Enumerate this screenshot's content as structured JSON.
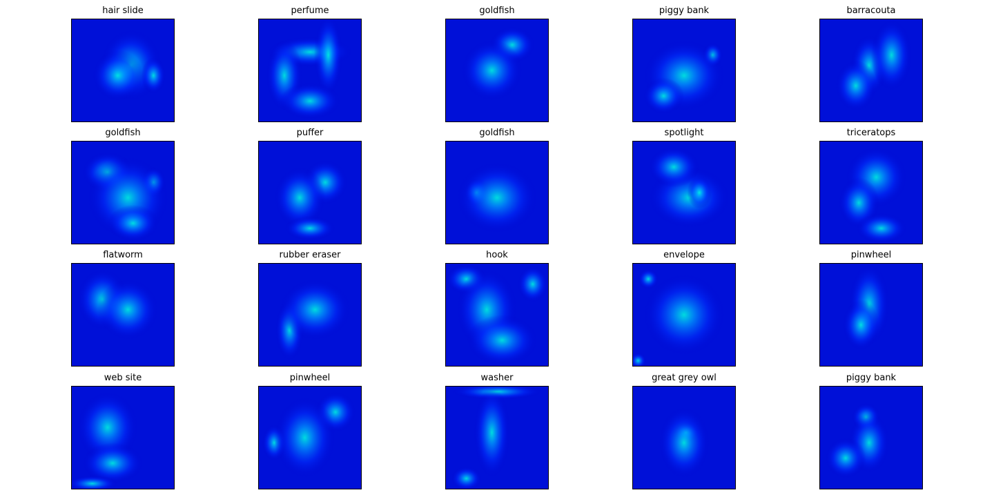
{
  "chart_data": {
    "type": "heatmap",
    "layout": "grid of saliency heatmaps",
    "rows": 4,
    "cols": 5,
    "colormap": "jet",
    "axes": "off",
    "panels": [
      {
        "title": "hair slide"
      },
      {
        "title": "perfume"
      },
      {
        "title": "goldfish"
      },
      {
        "title": "piggy bank"
      },
      {
        "title": "barracouta"
      },
      {
        "title": "goldfish"
      },
      {
        "title": "puffer"
      },
      {
        "title": "goldfish"
      },
      {
        "title": "spotlight"
      },
      {
        "title": "triceratops"
      },
      {
        "title": "flatworm"
      },
      {
        "title": "rubber eraser"
      },
      {
        "title": "hook"
      },
      {
        "title": "envelope"
      },
      {
        "title": "pinwheel"
      },
      {
        "title": "web site"
      },
      {
        "title": "pinwheel"
      },
      {
        "title": "washer"
      },
      {
        "title": "great grey owl"
      },
      {
        "title": "piggy bank"
      }
    ]
  }
}
